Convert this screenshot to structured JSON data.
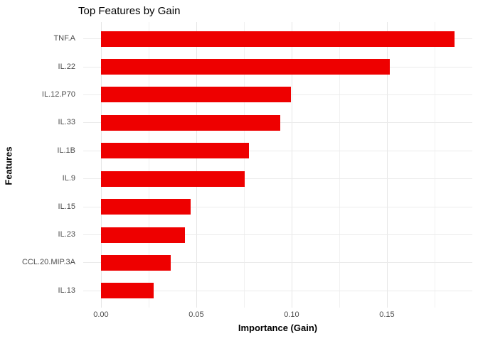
{
  "title": "Top Features by Gain",
  "chart_data": {
    "type": "bar",
    "orientation": "horizontal",
    "title": "Top Features by Gain",
    "xlabel": "Importance (Gain)",
    "ylabel": "Features",
    "categories": [
      "TNF.A",
      "IL.22",
      "IL.12.P70",
      "IL.33",
      "IL.1B",
      "IL.9",
      "IL.15",
      "IL.23",
      "CCL.20.MIP.3A",
      "IL.13"
    ],
    "values": [
      0.1855,
      0.1515,
      0.0995,
      0.094,
      0.0775,
      0.0755,
      0.047,
      0.044,
      0.0365,
      0.0275
    ],
    "x_ticks": [
      0.0,
      0.05,
      0.1,
      0.15
    ],
    "x_tick_labels": [
      "0.00",
      "0.05",
      "0.10",
      "0.15"
    ],
    "x_minor_ticks": [
      0.025,
      0.075,
      0.125,
      0.175
    ],
    "xlim": [
      -0.0093,
      0.1948
    ],
    "bar_color": "#ee0000",
    "grid": true,
    "grid_major_color": "#e6e6e6",
    "grid_minor_color": "#f1f1f1",
    "tick_label_color": "#4d4d4d",
    "legend": false
  }
}
